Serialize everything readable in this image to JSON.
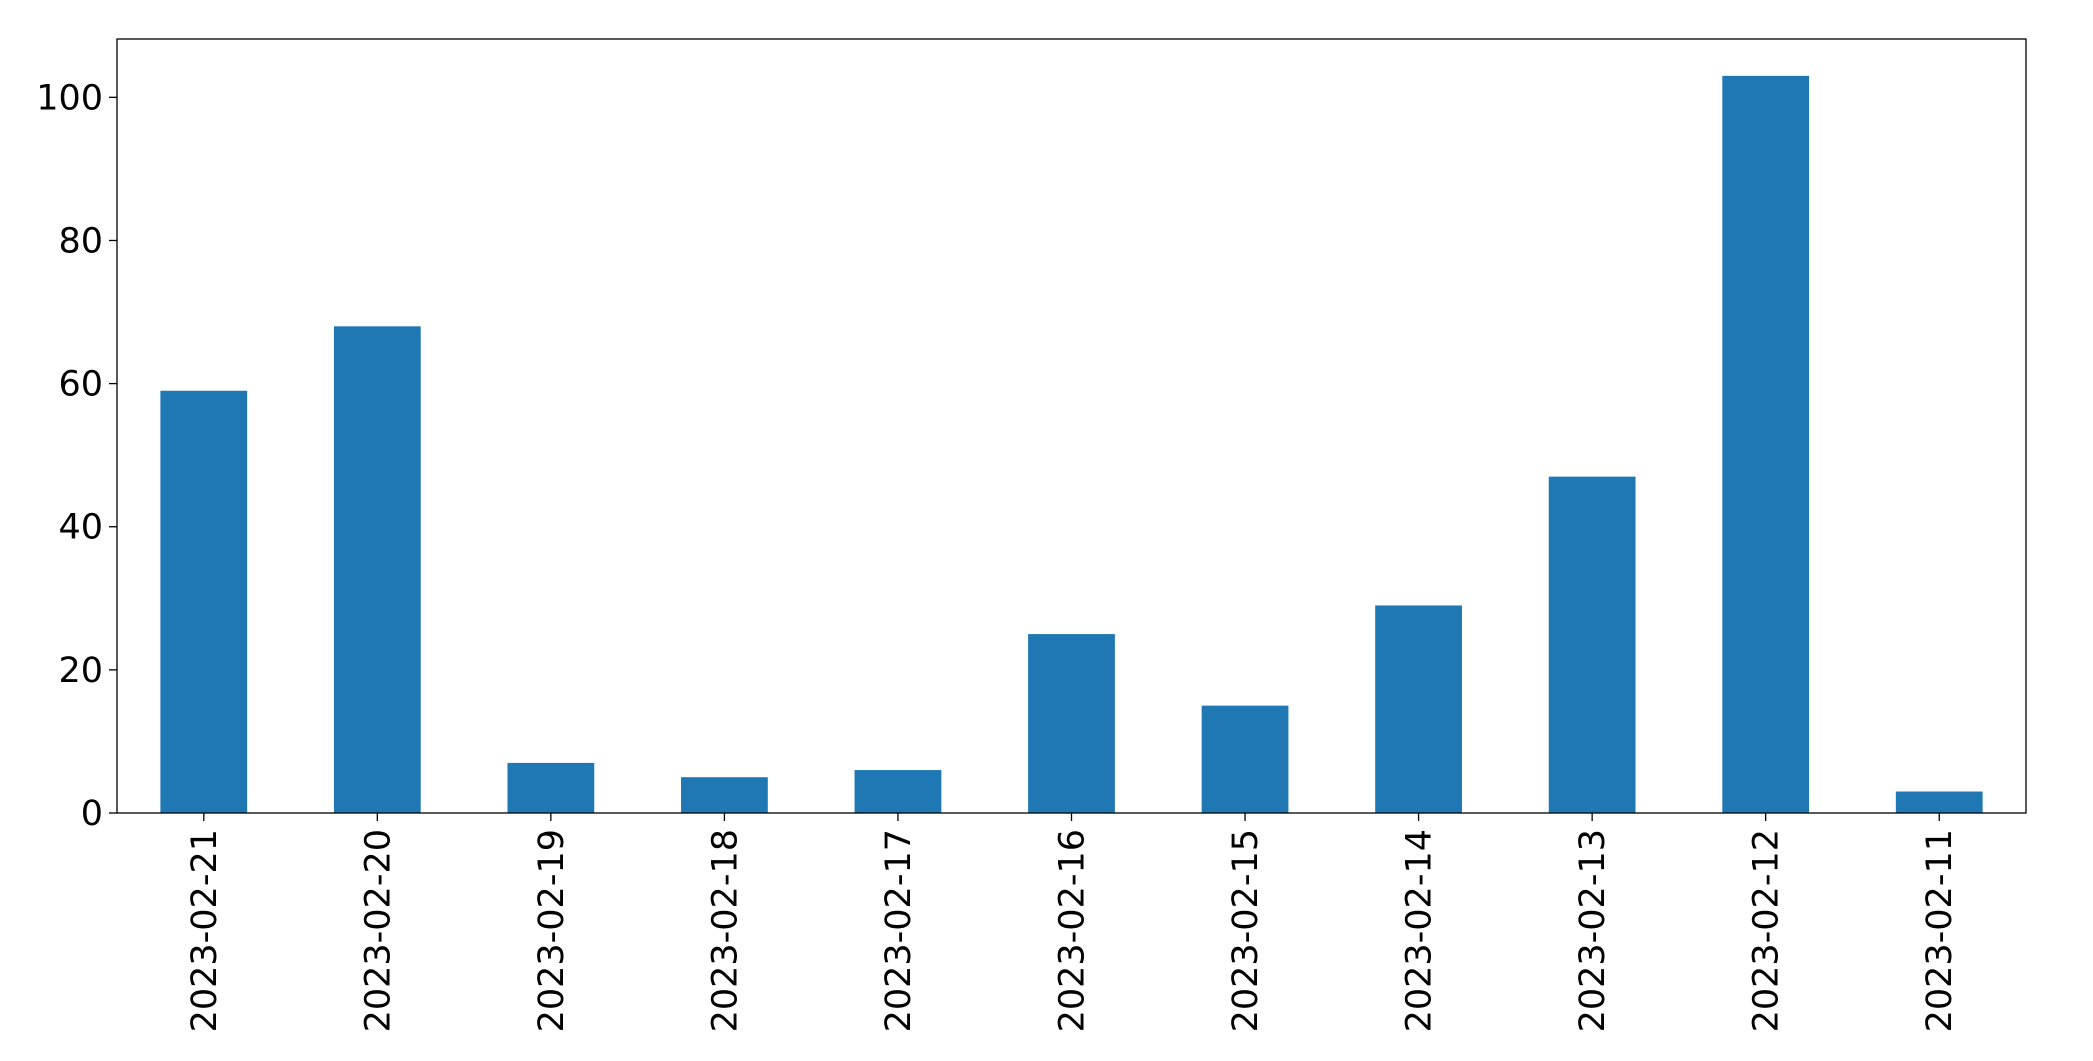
{
  "chart_data": {
    "type": "bar",
    "categories": [
      "2023-02-21",
      "2023-02-20",
      "2023-02-19",
      "2023-02-18",
      "2023-02-17",
      "2023-02-16",
      "2023-02-15",
      "2023-02-14",
      "2023-02-13",
      "2023-02-12",
      "2023-02-11"
    ],
    "values": [
      59,
      68,
      7,
      5,
      6,
      25,
      15,
      29,
      47,
      103,
      3
    ],
    "color": "#1f77b4",
    "ylim": [
      0,
      108.15
    ],
    "yticks": [
      0,
      20,
      40,
      60,
      80,
      100
    ],
    "grid": false
  }
}
